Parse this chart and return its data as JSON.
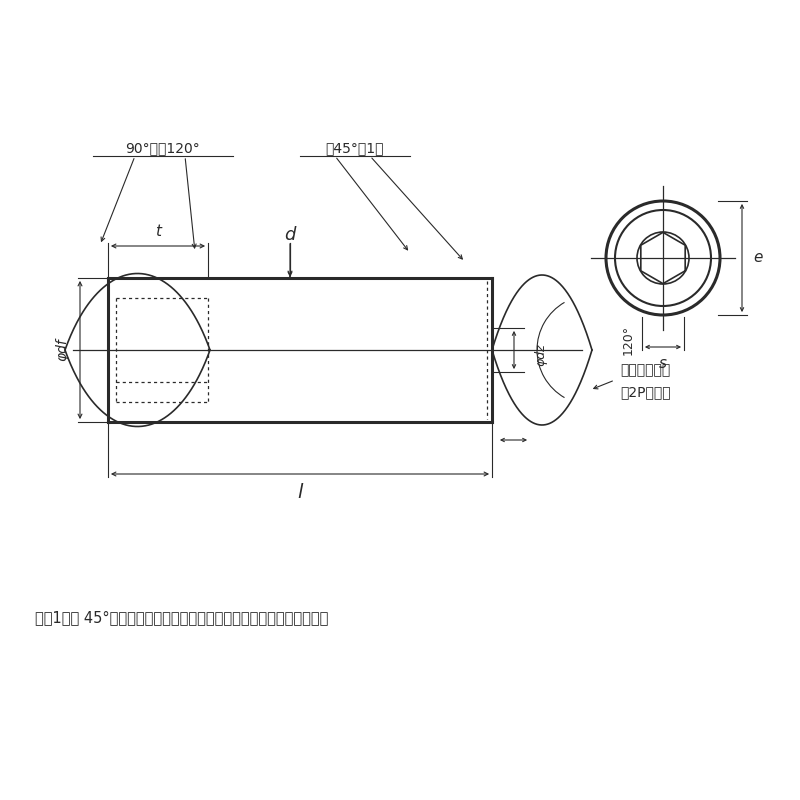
{
  "bg_color": "#ffffff",
  "line_color": "#2a2a2a",
  "note_text": "注（1）　 45°の角度は、おねじの谷の径より下の傾斡部に適用する。",
  "label_90_120": "90°又は120°",
  "label_45": "絀45°（1）",
  "label_incomplete": "不完全ねじ部",
  "label_2p": "（2P以下）",
  "label_120": "120°",
  "label_phi_df": "φdf",
  "label_phi_dz": "φdz",
  "label_t": "t",
  "label_d": "d",
  "label_l": "l",
  "label_e": "e",
  "label_s": "s"
}
